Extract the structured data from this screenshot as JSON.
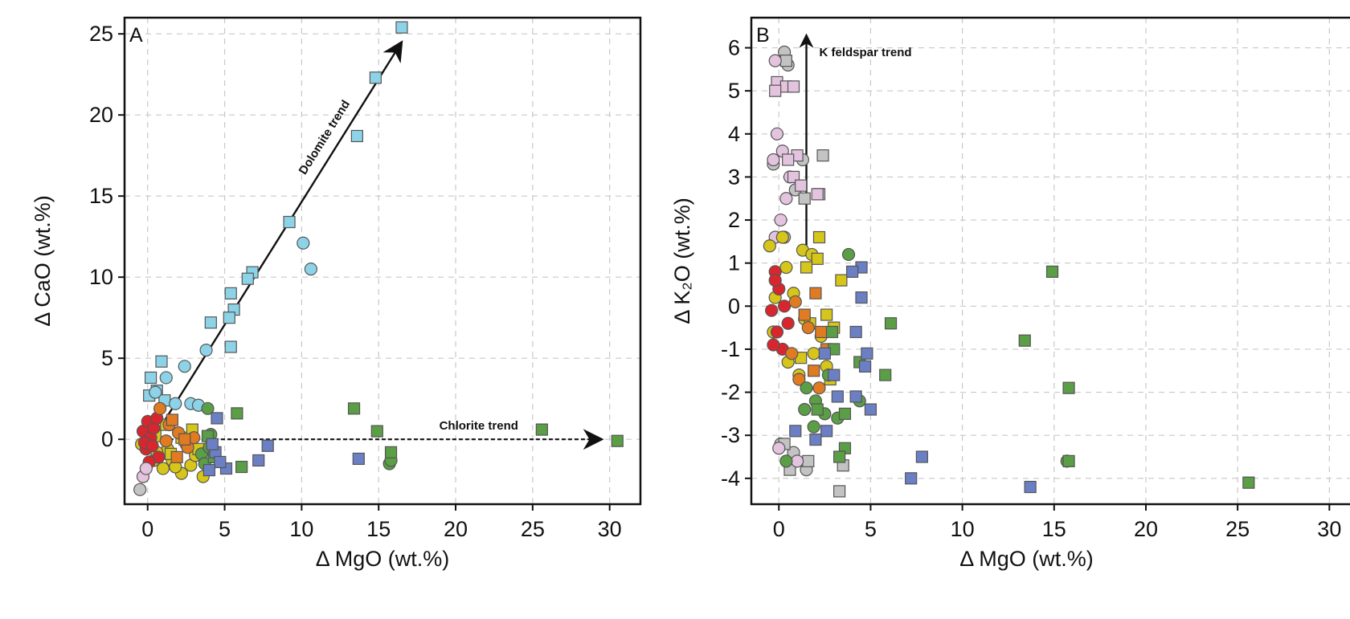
{
  "chart_data": [
    {
      "type": "scatter",
      "panel_label": "A",
      "xlabel": "Δ MgO (wt.%)",
      "ylabel": "Δ CaO (wt.%)",
      "xlim": [
        -1.5,
        32
      ],
      "ylim": [
        -4,
        26
      ],
      "xticks": [
        0,
        5,
        10,
        15,
        20,
        25,
        30
      ],
      "yticks": [
        0,
        5,
        10,
        15,
        20,
        25
      ],
      "grid": true,
      "annotations": [
        {
          "text": "Dolomite trend",
          "x_from": 1.0,
          "y_from": 1.0,
          "x_to": 16.5,
          "y_to": 24.5,
          "style": "solid"
        },
        {
          "text": "Chlorite trend",
          "x_from": 1.0,
          "y_from": 0.0,
          "x_to": 29.5,
          "y_to": 0.0,
          "style": "dashed"
        }
      ],
      "series": [
        {
          "color": "#8dd3e8",
          "marker": "square",
          "points": [
            [
              16.5,
              25.4
            ],
            [
              14.8,
              22.3
            ],
            [
              13.6,
              18.7
            ],
            [
              9.2,
              13.4
            ],
            [
              6.8,
              10.3
            ],
            [
              6.5,
              9.9
            ],
            [
              5.6,
              8.0
            ],
            [
              5.3,
              7.5
            ],
            [
              5.4,
              9.0
            ],
            [
              5.4,
              5.7
            ],
            [
              4.1,
              7.2
            ],
            [
              0.9,
              4.8
            ],
            [
              0.2,
              3.8
            ],
            [
              0.6,
              3.0
            ],
            [
              0.1,
              2.7
            ],
            [
              1.1,
              2.4
            ]
          ]
        },
        {
          "color": "#8dd3e8",
          "marker": "circle",
          "points": [
            [
              10.1,
              12.1
            ],
            [
              10.6,
              10.5
            ],
            [
              3.8,
              5.5
            ],
            [
              2.4,
              4.5
            ],
            [
              1.2,
              3.8
            ],
            [
              0.5,
              2.9
            ],
            [
              1.8,
              2.2
            ],
            [
              2.8,
              2.2
            ],
            [
              3.3,
              2.1
            ]
          ]
        },
        {
          "color": "#d7c61a",
          "marker": "circle",
          "points": [
            [
              -0.4,
              -0.3
            ],
            [
              0.4,
              -1.3
            ],
            [
              1.0,
              -1.8
            ],
            [
              1.6,
              -1.3
            ],
            [
              2.2,
              -2.1
            ],
            [
              2.8,
              -1.6
            ],
            [
              3.6,
              -2.3
            ],
            [
              1.3,
              -0.6
            ],
            [
              2.5,
              -0.3
            ],
            [
              0.6,
              -0.8
            ],
            [
              1.8,
              -1.7
            ],
            [
              3.1,
              -1.0
            ]
          ]
        },
        {
          "color": "#d7c61a",
          "marker": "square",
          "points": [
            [
              0.5,
              0.2
            ],
            [
              1.2,
              0.9
            ],
            [
              2.2,
              0.1
            ],
            [
              2.9,
              0.6
            ],
            [
              3.3,
              -0.6
            ],
            [
              1.5,
              -0.9
            ]
          ]
        },
        {
          "color": "#d9262e",
          "marker": "circle",
          "points": [
            [
              -0.3,
              0.5
            ],
            [
              0.0,
              1.1
            ],
            [
              0.2,
              0.1
            ],
            [
              -0.1,
              -0.6
            ],
            [
              0.4,
              0.7
            ],
            [
              0.7,
              -1.1
            ],
            [
              0.1,
              -1.4
            ],
            [
              0.6,
              1.3
            ],
            [
              -0.2,
              -0.2
            ],
            [
              0.3,
              -0.4
            ]
          ]
        },
        {
          "color": "#e07b22",
          "marker": "circle",
          "points": [
            [
              0.8,
              1.9
            ],
            [
              1.4,
              0.9
            ],
            [
              2.0,
              0.4
            ],
            [
              2.6,
              -0.5
            ],
            [
              1.2,
              -0.1
            ],
            [
              3.0,
              0.1
            ]
          ]
        },
        {
          "color": "#e07b22",
          "marker": "square",
          "points": [
            [
              1.6,
              1.2
            ],
            [
              2.4,
              0.0
            ],
            [
              1.9,
              -1.1
            ]
          ]
        },
        {
          "color": "#5a9e45",
          "marker": "circle",
          "points": [
            [
              3.9,
              1.9
            ],
            [
              3.5,
              -0.9
            ],
            [
              4.0,
              -0.5
            ],
            [
              3.7,
              -1.5
            ],
            [
              15.7,
              -1.5
            ],
            [
              15.8,
              -1.3
            ],
            [
              4.1,
              0.3
            ]
          ]
        },
        {
          "color": "#5a9e45",
          "marker": "square",
          "points": [
            [
              30.5,
              -0.1
            ],
            [
              25.6,
              0.6
            ],
            [
              13.4,
              1.9
            ],
            [
              14.9,
              0.5
            ],
            [
              15.8,
              -0.8
            ],
            [
              5.8,
              1.6
            ],
            [
              6.1,
              -1.7
            ],
            [
              4.3,
              -1.1
            ],
            [
              3.9,
              0.2
            ]
          ]
        },
        {
          "color": "#6b7fc4",
          "marker": "square",
          "points": [
            [
              13.7,
              -1.2
            ],
            [
              7.8,
              -0.4
            ],
            [
              7.2,
              -1.3
            ],
            [
              5.1,
              -1.8
            ],
            [
              4.5,
              1.3
            ],
            [
              4.4,
              -0.8
            ],
            [
              4.7,
              -1.4
            ],
            [
              4.2,
              -0.3
            ],
            [
              4.0,
              -1.9
            ]
          ]
        },
        {
          "color": "#e4c3de",
          "marker": "circle",
          "points": [
            [
              -0.3,
              -2.3
            ],
            [
              -0.1,
              -1.8
            ]
          ]
        },
        {
          "color": "#c3c3c3",
          "marker": "circle",
          "points": [
            [
              -0.5,
              -3.1
            ]
          ]
        }
      ]
    },
    {
      "type": "scatter",
      "panel_label": "B",
      "xlabel": "Δ MgO (wt.%)",
      "ylabel": "Δ K₂O (wt.%)",
      "xlim": [
        -1.5,
        32
      ],
      "ylim": [
        -4.6,
        6.7
      ],
      "xticks": [
        0,
        5,
        10,
        15,
        20,
        25,
        30
      ],
      "yticks": [
        -4,
        -3,
        -2,
        -1,
        0,
        1,
        2,
        3,
        4,
        5,
        6
      ],
      "grid": true,
      "annotations": [
        {
          "text": "K feldspar trend",
          "x_from": 1.5,
          "y_from": 1.4,
          "x_to": 1.5,
          "y_to": 6.3,
          "style": "solid"
        }
      ],
      "series": [
        {
          "color": "#c3c3c3",
          "marker": "circle",
          "points": [
            [
              0.3,
              5.9
            ],
            [
              0.5,
              5.6
            ],
            [
              1.3,
              3.4
            ],
            [
              -0.3,
              3.3
            ],
            [
              0.9,
              2.7
            ],
            [
              0.3,
              1.6
            ],
            [
              0.1,
              -3.2
            ],
            [
              0.6,
              -3.7
            ],
            [
              1.5,
              -3.8
            ],
            [
              0.8,
              -3.4
            ]
          ]
        },
        {
          "color": "#c3c3c3",
          "marker": "square",
          "points": [
            [
              0.4,
              5.7
            ],
            [
              2.4,
              3.5
            ],
            [
              2.2,
              2.6
            ],
            [
              1.4,
              2.5
            ],
            [
              0.3,
              -3.2
            ],
            [
              0.6,
              -3.8
            ],
            [
              1.6,
              -3.6
            ],
            [
              3.3,
              -4.3
            ],
            [
              3.5,
              -3.7
            ]
          ]
        },
        {
          "color": "#e4c3de",
          "marker": "circle",
          "points": [
            [
              -0.2,
              5.7
            ],
            [
              -0.1,
              4.0
            ],
            [
              0.2,
              3.6
            ],
            [
              -0.3,
              3.4
            ],
            [
              0.6,
              3.0
            ],
            [
              0.4,
              2.5
            ],
            [
              0.1,
              2.0
            ],
            [
              -0.2,
              1.6
            ],
            [
              0.0,
              -3.3
            ],
            [
              1.0,
              -3.6
            ]
          ]
        },
        {
          "color": "#e4c3de",
          "marker": "square",
          "points": [
            [
              -0.1,
              5.2
            ],
            [
              0.4,
              5.1
            ],
            [
              0.8,
              5.1
            ],
            [
              -0.2,
              5.0
            ],
            [
              1.0,
              3.5
            ],
            [
              0.8,
              3.0
            ],
            [
              1.2,
              2.8
            ],
            [
              2.1,
              2.6
            ],
            [
              0.5,
              3.4
            ]
          ]
        },
        {
          "color": "#d7c61a",
          "marker": "circle",
          "points": [
            [
              -0.5,
              1.4
            ],
            [
              0.2,
              1.6
            ],
            [
              1.3,
              1.3
            ],
            [
              1.8,
              1.2
            ],
            [
              -0.3,
              -0.6
            ],
            [
              0.8,
              0.3
            ],
            [
              1.4,
              -0.3
            ],
            [
              0.5,
              -1.3
            ],
            [
              1.1,
              -1.6
            ],
            [
              1.9,
              -1.1
            ],
            [
              2.3,
              -0.7
            ],
            [
              2.6,
              -1.4
            ],
            [
              0.4,
              0.9
            ],
            [
              -0.2,
              0.2
            ]
          ]
        },
        {
          "color": "#d7c61a",
          "marker": "square",
          "points": [
            [
              2.2,
              1.6
            ],
            [
              2.1,
              1.1
            ],
            [
              3.4,
              0.6
            ],
            [
              1.5,
              0.9
            ],
            [
              2.6,
              -0.2
            ],
            [
              3.0,
              -0.5
            ],
            [
              2.8,
              -1.7
            ],
            [
              1.2,
              -1.2
            ],
            [
              1.7,
              -0.4
            ]
          ]
        },
        {
          "color": "#d9262e",
          "marker": "circle",
          "points": [
            [
              -0.2,
              0.8
            ],
            [
              0.0,
              0.4
            ],
            [
              -0.4,
              -0.1
            ],
            [
              0.3,
              0.0
            ],
            [
              -0.1,
              -0.6
            ],
            [
              0.2,
              -1.0
            ],
            [
              -0.3,
              -0.9
            ],
            [
              0.5,
              -0.4
            ],
            [
              -0.2,
              0.6
            ]
          ]
        },
        {
          "color": "#e07b22",
          "marker": "circle",
          "points": [
            [
              0.9,
              0.1
            ],
            [
              1.6,
              -0.5
            ],
            [
              1.1,
              -1.7
            ],
            [
              2.2,
              -1.9
            ],
            [
              0.7,
              -1.1
            ]
          ]
        },
        {
          "color": "#e07b22",
          "marker": "square",
          "points": [
            [
              1.4,
              -0.2
            ],
            [
              2.6,
              -1.0
            ],
            [
              1.9,
              -1.5
            ],
            [
              2.3,
              -0.6
            ],
            [
              2.0,
              0.3
            ]
          ]
        },
        {
          "color": "#5a9e45",
          "marker": "circle",
          "points": [
            [
              3.8,
              1.2
            ],
            [
              1.5,
              -1.9
            ],
            [
              2.0,
              -2.2
            ],
            [
              1.4,
              -2.4
            ],
            [
              2.7,
              -1.6
            ],
            [
              3.2,
              -2.6
            ],
            [
              1.9,
              -2.8
            ],
            [
              4.4,
              -2.2
            ],
            [
              0.4,
              -3.6
            ],
            [
              15.7,
              -3.6
            ],
            [
              2.5,
              -2.5
            ]
          ]
        },
        {
          "color": "#5a9e45",
          "marker": "square",
          "points": [
            [
              14.9,
              0.8
            ],
            [
              6.1,
              -0.4
            ],
            [
              13.4,
              -0.8
            ],
            [
              5.8,
              -1.6
            ],
            [
              15.8,
              -1.9
            ],
            [
              25.6,
              -4.1
            ],
            [
              3.6,
              -3.3
            ],
            [
              3.3,
              -3.5
            ],
            [
              3.6,
              -2.5
            ],
            [
              2.1,
              -2.4
            ],
            [
              4.4,
              -1.3
            ],
            [
              3.0,
              -1.0
            ],
            [
              15.8,
              -3.6
            ],
            [
              2.9,
              -0.6
            ]
          ]
        },
        {
          "color": "#6b7fc4",
          "marker": "square",
          "points": [
            [
              4.5,
              0.9
            ],
            [
              4.0,
              0.8
            ],
            [
              4.5,
              0.2
            ],
            [
              4.2,
              -0.6
            ],
            [
              4.8,
              -1.1
            ],
            [
              4.7,
              -1.4
            ],
            [
              3.0,
              -1.6
            ],
            [
              3.2,
              -2.1
            ],
            [
              4.2,
              -2.1
            ],
            [
              5.0,
              -2.4
            ],
            [
              2.6,
              -2.9
            ],
            [
              0.9,
              -2.9
            ],
            [
              2.0,
              -3.1
            ],
            [
              7.8,
              -3.5
            ],
            [
              7.2,
              -4.0
            ],
            [
              13.7,
              -4.2
            ],
            [
              2.5,
              -1.1
            ]
          ]
        }
      ]
    }
  ]
}
